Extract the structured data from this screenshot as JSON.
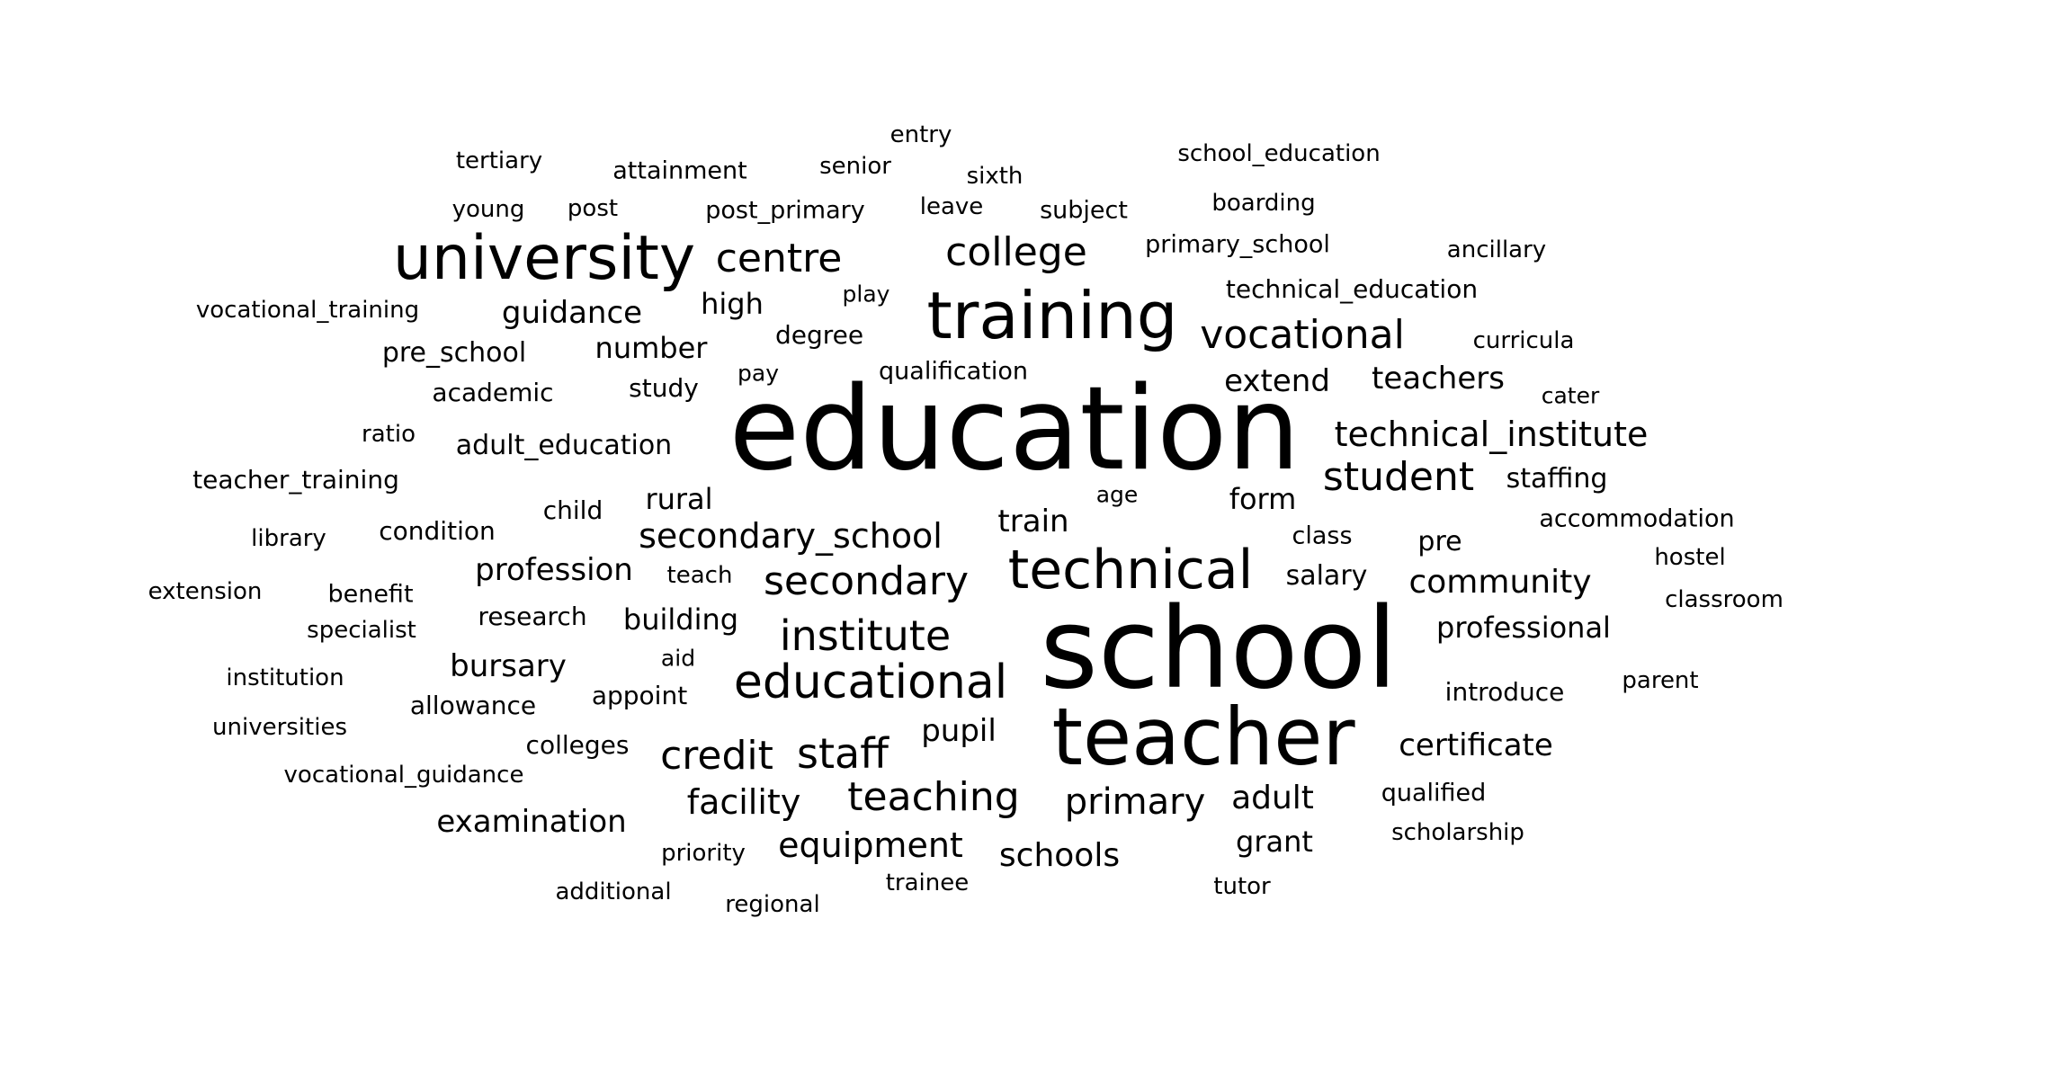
{
  "words": [
    {
      "text": "education",
      "weight": 1.0
    },
    {
      "text": "school",
      "weight": 0.96
    },
    {
      "text": "teacher",
      "weight": 0.68
    },
    {
      "text": "training",
      "weight": 0.56
    },
    {
      "text": "university",
      "weight": 0.53
    },
    {
      "text": "technical",
      "weight": 0.46
    },
    {
      "text": "educational",
      "weight": 0.4
    },
    {
      "text": "vocational",
      "weight": 0.35
    },
    {
      "text": "institute",
      "weight": 0.36
    },
    {
      "text": "secondary",
      "weight": 0.34
    },
    {
      "text": "student",
      "weight": 0.34
    },
    {
      "text": "college",
      "weight": 0.34
    },
    {
      "text": "teaching",
      "weight": 0.35
    },
    {
      "text": "centre",
      "weight": 0.34
    },
    {
      "text": "staff",
      "weight": 0.35
    },
    {
      "text": "credit",
      "weight": 0.35
    },
    {
      "text": "technical_institute",
      "weight": 0.3
    },
    {
      "text": "secondary_school",
      "weight": 0.3
    },
    {
      "text": "community",
      "weight": 0.29
    },
    {
      "text": "primary",
      "weight": 0.3
    },
    {
      "text": "equipment",
      "weight": 0.29
    },
    {
      "text": "facility",
      "weight": 0.29
    },
    {
      "text": "schools",
      "weight": 0.28
    },
    {
      "text": "guidance",
      "weight": 0.27
    },
    {
      "text": "teachers",
      "weight": 0.27
    },
    {
      "text": "extend",
      "weight": 0.27
    },
    {
      "text": "adult",
      "weight": 0.27
    },
    {
      "text": "examination",
      "weight": 0.26
    },
    {
      "text": "certificate",
      "weight": 0.26
    },
    {
      "text": "professional",
      "weight": 0.26
    },
    {
      "text": "profession",
      "weight": 0.26
    },
    {
      "text": "pupil",
      "weight": 0.27
    },
    {
      "text": "bursary",
      "weight": 0.26
    },
    {
      "text": "building",
      "weight": 0.25
    },
    {
      "text": "number",
      "weight": 0.25
    },
    {
      "text": "rural",
      "weight": 0.25
    },
    {
      "text": "form",
      "weight": 0.25
    },
    {
      "text": "train",
      "weight": 0.25
    },
    {
      "text": "grant",
      "weight": 0.25
    },
    {
      "text": "high",
      "weight": 0.25
    },
    {
      "text": "staffing",
      "weight": 0.24
    },
    {
      "text": "adult_education",
      "weight": 0.24
    },
    {
      "text": "pre_school",
      "weight": 0.24
    },
    {
      "text": "salary",
      "weight": 0.24
    },
    {
      "text": "pre",
      "weight": 0.24
    },
    {
      "text": "teacher_training",
      "weight": 0.23
    },
    {
      "text": "technical_education",
      "weight": 0.23
    },
    {
      "text": "introduce",
      "weight": 0.23
    },
    {
      "text": "research",
      "weight": 0.23
    },
    {
      "text": "appoint",
      "weight": 0.23
    },
    {
      "text": "allowance",
      "weight": 0.23
    },
    {
      "text": "condition",
      "weight": 0.23
    },
    {
      "text": "academic",
      "weight": 0.23
    },
    {
      "text": "study",
      "weight": 0.23
    },
    {
      "text": "colleges",
      "weight": 0.23
    },
    {
      "text": "child",
      "weight": 0.23
    },
    {
      "text": "degree",
      "weight": 0.23
    },
    {
      "text": "primary_school",
      "weight": 0.22
    },
    {
      "text": "accommodation",
      "weight": 0.22
    },
    {
      "text": "qualification",
      "weight": 0.22
    },
    {
      "text": "benefit",
      "weight": 0.22
    },
    {
      "text": "subject",
      "weight": 0.22
    },
    {
      "text": "post_primary",
      "weight": 0.22
    },
    {
      "text": "attainment",
      "weight": 0.22
    },
    {
      "text": "qualified",
      "weight": 0.22
    },
    {
      "text": "class",
      "weight": 0.22
    },
    {
      "text": "vocational_training",
      "weight": 0.21
    },
    {
      "text": "vocational_guidance",
      "weight": 0.21
    },
    {
      "text": "school_education",
      "weight": 0.21
    },
    {
      "text": "extension",
      "weight": 0.21
    },
    {
      "text": "specialist",
      "weight": 0.21
    },
    {
      "text": "institution",
      "weight": 0.21
    },
    {
      "text": "universities",
      "weight": 0.21
    },
    {
      "text": "scholarship",
      "weight": 0.21
    },
    {
      "text": "classroom",
      "weight": 0.21
    },
    {
      "text": "curricula",
      "weight": 0.21
    },
    {
      "text": "ancillary",
      "weight": 0.21
    },
    {
      "text": "boarding",
      "weight": 0.21
    },
    {
      "text": "library",
      "weight": 0.21
    },
    {
      "text": "priority",
      "weight": 0.21
    },
    {
      "text": "additional",
      "weight": 0.21
    },
    {
      "text": "regional",
      "weight": 0.21
    },
    {
      "text": "trainee",
      "weight": 0.21
    },
    {
      "text": "tertiary",
      "weight": 0.21
    },
    {
      "text": "senior",
      "weight": 0.21
    },
    {
      "text": "sixth",
      "weight": 0.21
    },
    {
      "text": "young",
      "weight": 0.21
    },
    {
      "text": "leave",
      "weight": 0.21
    },
    {
      "text": "hostel",
      "weight": 0.21
    },
    {
      "text": "parent",
      "weight": 0.21
    },
    {
      "text": "tutor",
      "weight": 0.21
    },
    {
      "text": "teach",
      "weight": 0.21
    },
    {
      "text": "ratio",
      "weight": 0.21
    },
    {
      "text": "entry",
      "weight": 0.21
    },
    {
      "text": "post",
      "weight": 0.21
    },
    {
      "text": "cater",
      "weight": 0.2
    },
    {
      "text": "play",
      "weight": 0.2
    },
    {
      "text": "pay",
      "weight": 0.2
    },
    {
      "text": "age",
      "weight": 0.2
    },
    {
      "text": "aid",
      "weight": 0.2
    }
  ]
}
